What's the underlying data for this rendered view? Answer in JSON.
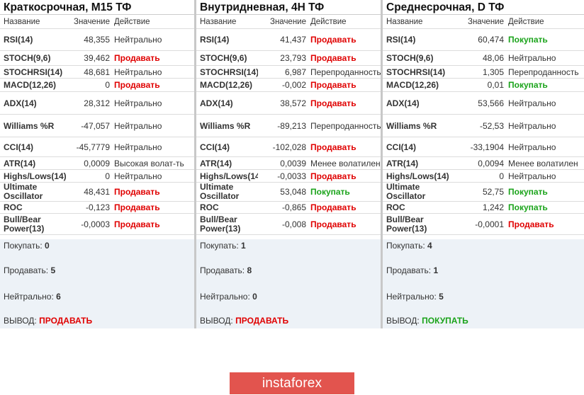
{
  "headers": {
    "name": "Название",
    "value": "Значение",
    "action": "Действие"
  },
  "indicators": [
    "RSI(14)",
    "STOCH(9,6)",
    "STOCHRSI(14)",
    "MACD(12,26)",
    "ADX(14)",
    "Williams %R",
    "CCI(14)",
    "ATR(14)",
    "Highs/Lows(14)",
    "Ultimate Oscillator",
    "ROC",
    "Bull/Bear Power(13)"
  ],
  "panels": [
    {
      "title": "Краткосрочная, M15 ТФ",
      "values": [
        "48,355",
        "39,462",
        "48,681",
        "0",
        "28,312",
        "-47,057",
        "-45,7779",
        "0,0009",
        "0",
        "48,431",
        "-0,123",
        "-0,0003"
      ],
      "actions": [
        "Нейтрально",
        "Продавать",
        "Нейтрально",
        "Продавать",
        "Нейтрально",
        "Нейтрально",
        "Нейтрально",
        "Высокая волат-ть",
        "Нейтрально",
        "Продавать",
        "Продавать",
        "Продавать"
      ],
      "summary": {
        "buy_label": "Покупать:",
        "buy": "0",
        "sell_label": "Продавать:",
        "sell": "5",
        "neutral_label": "Нейтрально:",
        "neutral": "6",
        "conclusion_label": "ВЫВОД:",
        "conclusion": "ПРОДАВАТЬ"
      }
    },
    {
      "title": "Внутридневная, 4H ТФ",
      "values": [
        "41,437",
        "23,793",
        "6,987",
        "-0,002",
        "38,572",
        "-89,213",
        "-102,028",
        "0,0039",
        "-0,0033",
        "53,048",
        "-0,865",
        "-0,008"
      ],
      "actions": [
        "Продавать",
        "Продавать",
        "Перепроданность",
        "Продавать",
        "Продавать",
        "Перепроданность",
        "Продавать",
        "Менее волатилен",
        "Продавать",
        "Покупать",
        "Продавать",
        "Продавать"
      ],
      "summary": {
        "buy_label": "Покупать:",
        "buy": "1",
        "sell_label": "Продавать:",
        "sell": "8",
        "neutral_label": "Нейтрально:",
        "neutral": "0",
        "conclusion_label": "ВЫВОД:",
        "conclusion": "ПРОДАВАТЬ"
      }
    },
    {
      "title": "Среднесрочная, D ТФ",
      "values": [
        "60,474",
        "48,06",
        "1,305",
        "0,01",
        "53,566",
        "-52,53",
        "-33,1904",
        "0,0094",
        "0",
        "52,75",
        "1,242",
        "-0,0001"
      ],
      "actions": [
        "Покупать",
        "Нейтрально",
        "Перепроданность",
        "Покупать",
        "Нейтрально",
        "Нейтрально",
        "Нейтрально",
        "Менее волатилен",
        "Нейтрально",
        "Покупать",
        "Покупать",
        "Продавать"
      ],
      "summary": {
        "buy_label": "Покупать:",
        "buy": "4",
        "sell_label": "Продавать:",
        "sell": "1",
        "neutral_label": "Нейтрально:",
        "neutral": "5",
        "conclusion_label": "ВЫВОД:",
        "conclusion": "ПОКУПАТЬ"
      }
    }
  ],
  "logo": "instaforex",
  "colors": {
    "sell": "#e00000",
    "buy": "#1aa31a",
    "neutral": "#333333",
    "summary_bg": "#edf2f7",
    "logo_bg": "#e2544e"
  }
}
